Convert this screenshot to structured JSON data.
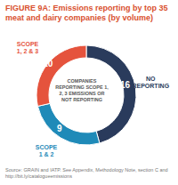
{
  "chart_data": {
    "type": "pie",
    "title": "FIGURE 9A: Emissions reporting by top 35 meat and dairy companies (by volume)",
    "annotation": "COMPANIES REPORTING SCOPE 1, 2, 3 EMISSIONS OR NOT REPORTING",
    "categories": [
      "NO REPORTING",
      "SCOPE 1 & 2",
      "SCOPE 1, 2 & 3"
    ],
    "values": [
      16,
      9,
      10
    ],
    "colors": [
      "#2a3b5c",
      "#1f8ab8",
      "#e5533d"
    ],
    "data_labels": true,
    "source": "Source: GRAIN and IATP. See Appendix, Methodology Note, section C and http://bit.ly/catalogueemissions"
  }
}
